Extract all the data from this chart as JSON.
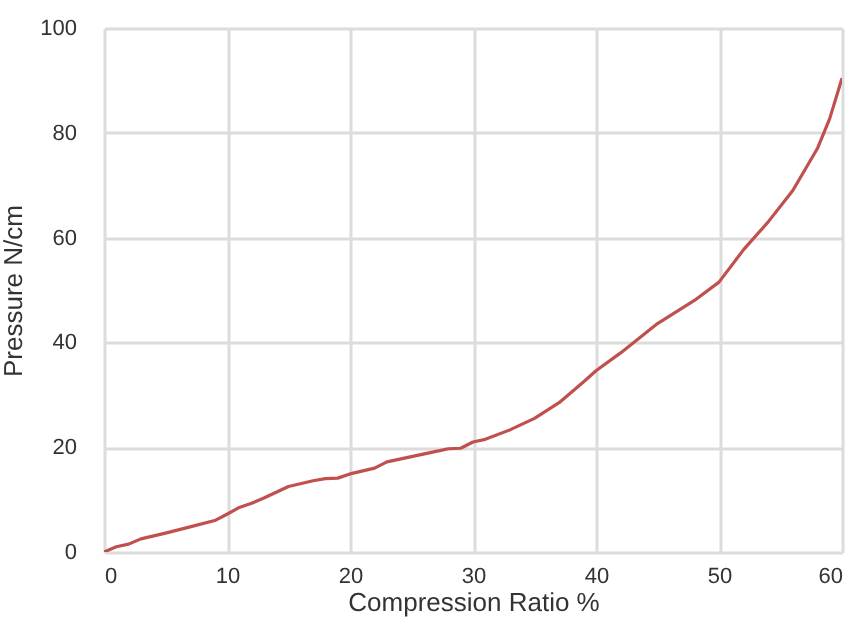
{
  "chart_data": {
    "type": "line",
    "xlabel": "Compression Ratio %",
    "ylabel": "Pressure N/cm",
    "x": [
      0,
      1,
      2,
      3,
      5,
      7,
      9,
      10,
      11,
      12,
      13,
      15,
      17,
      18,
      19,
      20,
      22,
      23,
      25,
      27,
      28,
      29,
      30,
      31,
      33,
      35,
      37,
      38,
      39,
      40,
      42,
      45,
      48,
      50,
      52,
      54,
      56,
      58,
      59,
      60
    ],
    "series": [
      {
        "color": "#c0504d",
        "values": [
          0,
          1,
          1.5,
          2.5,
          3.6,
          4.8,
          6,
          7.2,
          8.5,
          9.3,
          10.3,
          12.5,
          13.6,
          14,
          14.1,
          14.9,
          16,
          17.2,
          18.2,
          19.2,
          19.7,
          19.8,
          21,
          21.5,
          23.3,
          25.5,
          28.5,
          30.5,
          32.5,
          34.6,
          38,
          43.6,
          48,
          51.5,
          57.7,
          63,
          69,
          77,
          82.7,
          90.4
        ]
      }
    ],
    "xlim": [
      0,
      60
    ],
    "xticks": [
      0,
      10,
      20,
      30,
      40,
      50,
      60
    ],
    "ylim": [
      0,
      100
    ],
    "yticks": [
      0,
      20,
      40,
      60,
      80,
      100
    ],
    "grid": true,
    "marker": "none",
    "line_style": "solid"
  }
}
